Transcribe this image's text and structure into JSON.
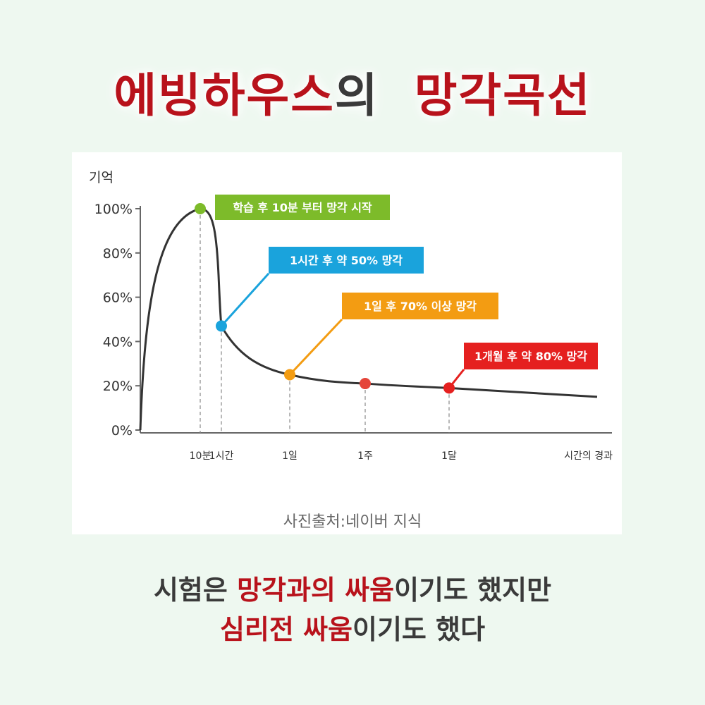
{
  "header": {
    "title_part1": "에빙하우스",
    "title_part2": "의",
    "title_part3": "망각곡선"
  },
  "chart_data": {
    "type": "line",
    "ylabel": "기억",
    "xlabel": "시간의 경과",
    "y_ticks": [
      "100%",
      "80%",
      "60%",
      "40%",
      "20%",
      "0%"
    ],
    "y_tick_values": [
      100,
      80,
      60,
      40,
      20,
      0
    ],
    "x_ticks": [
      "10분",
      "1시간",
      "1일",
      "1주",
      "1달"
    ],
    "ylim": [
      0,
      100
    ],
    "grid": false,
    "series": [
      {
        "values": [
          {
            "x": "0",
            "y": 0
          },
          {
            "x": "10분",
            "y": 100
          },
          {
            "x": "1시간",
            "y": 47
          },
          {
            "x": "1일",
            "y": 25
          },
          {
            "x": "1주",
            "y": 21
          },
          {
            "x": "1달",
            "y": 19
          }
        ]
      }
    ],
    "annotations": [
      {
        "text": "학습 후 10분 부터 망각 시작",
        "x": "10분",
        "y": 100,
        "color": "#7dbb2a"
      },
      {
        "text": "1시간 후 약 50% 망각",
        "x": "1시간",
        "y": 47,
        "color": "#1aa3dc"
      },
      {
        "text": "1일 후 70% 이상 망각",
        "x": "1일",
        "y": 25,
        "color": "#f39c12"
      },
      {
        "text": "1개월 후 약 80% 망각",
        "x": "1달",
        "y": 19,
        "color": "#e5201f"
      }
    ],
    "markers": [
      {
        "x": "10분",
        "y": 100,
        "color": "#7dbb2a"
      },
      {
        "x": "1시간",
        "y": 47,
        "color": "#1aa3dc"
      },
      {
        "x": "1일",
        "y": 25,
        "color": "#f39c12"
      },
      {
        "x": "1주",
        "y": 21,
        "color": "#e5453a"
      },
      {
        "x": "1달",
        "y": 19,
        "color": "#e5201f"
      }
    ]
  },
  "source": "사진출처:네이버 지식",
  "caption": {
    "line1_a": "시험은 ",
    "line1_b": "망각과의 싸움",
    "line1_c": "이기도 했지만",
    "line2_a": "심리전 싸움",
    "line2_b": "이기도 했다"
  },
  "colors": {
    "accent_red": "#b8121b",
    "text_dark": "#3a3a3a",
    "background": "#eef8f0"
  }
}
